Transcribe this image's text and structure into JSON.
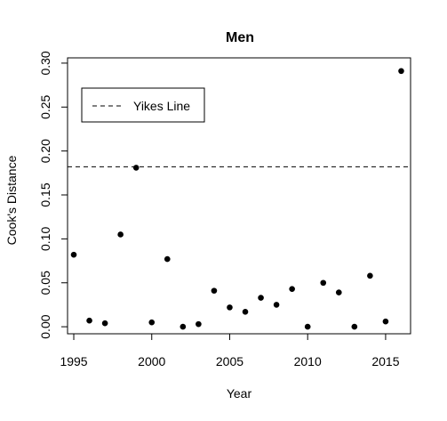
{
  "chart_data": {
    "type": "scatter",
    "title": "Men",
    "xlabel": "Year",
    "ylabel": "Cook's Distance",
    "xlim": [
      1994.6,
      2016.6
    ],
    "ylim": [
      -0.008,
      0.306
    ],
    "xticks": [
      1995,
      2000,
      2005,
      2010,
      2015
    ],
    "xtick_labels": [
      "1995",
      "2000",
      "2005",
      "2010",
      "2015"
    ],
    "yticks": [
      0.0,
      0.05,
      0.1,
      0.15,
      0.2,
      0.25,
      0.3
    ],
    "ytick_labels": [
      "0.00",
      "0.05",
      "0.10",
      "0.15",
      "0.20",
      "0.25",
      "0.30"
    ],
    "grid": false,
    "points": [
      {
        "x": 1995,
        "y": 0.082
      },
      {
        "x": 1996,
        "y": 0.007
      },
      {
        "x": 1997,
        "y": 0.004
      },
      {
        "x": 1998,
        "y": 0.105
      },
      {
        "x": 1999,
        "y": 0.181
      },
      {
        "x": 2000,
        "y": 0.005
      },
      {
        "x": 2001,
        "y": 0.077
      },
      {
        "x": 2002,
        "y": 0.0
      },
      {
        "x": 2003,
        "y": 0.003
      },
      {
        "x": 2004,
        "y": 0.041
      },
      {
        "x": 2005,
        "y": 0.022
      },
      {
        "x": 2006,
        "y": 0.017
      },
      {
        "x": 2007,
        "y": 0.033
      },
      {
        "x": 2008,
        "y": 0.025
      },
      {
        "x": 2009,
        "y": 0.043
      },
      {
        "x": 2010,
        "y": 0.0
      },
      {
        "x": 2011,
        "y": 0.05
      },
      {
        "x": 2012,
        "y": 0.039
      },
      {
        "x": 2013,
        "y": 0.0
      },
      {
        "x": 2014,
        "y": 0.058
      },
      {
        "x": 2015,
        "y": 0.006
      },
      {
        "x": 2016,
        "y": 0.291
      }
    ],
    "reference_line": {
      "y": 0.182,
      "style": "dashed",
      "label": "Yikes Line"
    },
    "legend": {
      "placement": "top-left",
      "entries": [
        "Yikes Line"
      ]
    },
    "colors": {
      "points": "#000000",
      "line": "#000000"
    }
  }
}
